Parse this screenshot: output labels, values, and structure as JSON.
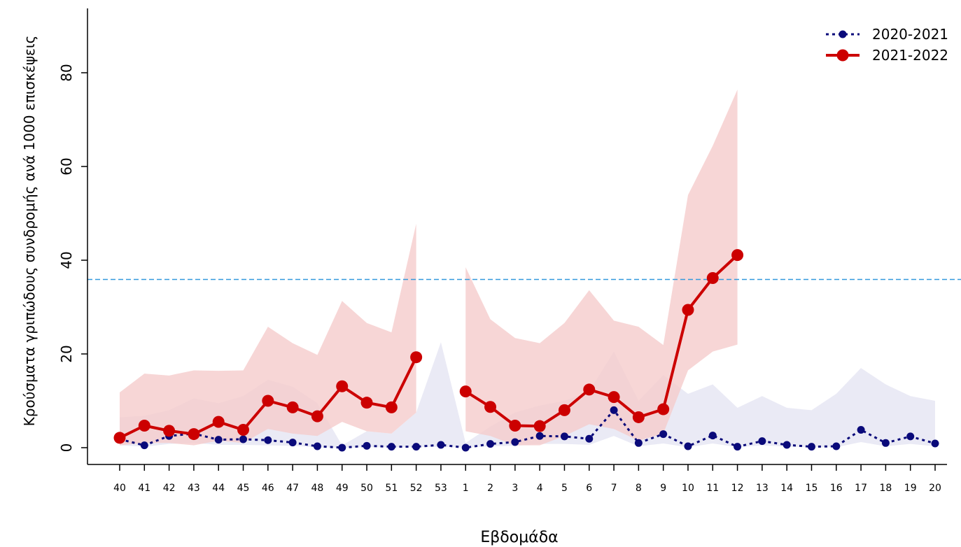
{
  "chart_data": {
    "type": "line",
    "title": "",
    "xlabel": "Εβδομάδα",
    "ylabel": "Κρούσματα γριπώδους συνδρομής ανά 1000 επισκέψεις",
    "categories": [
      "40",
      "41",
      "42",
      "43",
      "44",
      "45",
      "46",
      "47",
      "48",
      "49",
      "50",
      "51",
      "52",
      "53",
      "1",
      "2",
      "3",
      "4",
      "5",
      "6",
      "7",
      "8",
      "9",
      "10",
      "11",
      "12",
      "13",
      "14",
      "15",
      "16",
      "17",
      "18",
      "19",
      "20"
    ],
    "ylim": [
      0,
      93
    ],
    "yticks": [
      0,
      20,
      40,
      60,
      80
    ],
    "threshold": 35.9,
    "legend_position": "top-right",
    "series": [
      {
        "name": "2020-2021",
        "color": "#0a0a7a",
        "line_style": "dotted",
        "band_color": "#e6e6f3",
        "values": [
          1.8,
          0.5,
          2.5,
          3.0,
          1.7,
          1.8,
          1.6,
          1.1,
          0.3,
          0.0,
          0.4,
          0.2,
          0.2,
          0.6,
          0.0,
          0.8,
          1.2,
          2.5,
          2.4,
          1.9,
          8.0,
          1.0,
          2.9,
          0.3,
          2.6,
          0.2,
          1.4,
          0.6,
          0.2,
          0.3,
          3.8,
          1.0,
          2.4,
          0.9
        ],
        "band_low": [
          0.5,
          0.2,
          0.8,
          1.0,
          0.6,
          0.6,
          0.5,
          0.4,
          0.1,
          0.0,
          0.1,
          0.1,
          0.1,
          0.2,
          0.0,
          0.3,
          0.4,
          0.8,
          0.8,
          0.6,
          2.5,
          0.3,
          0.9,
          0.1,
          0.9,
          0.1,
          0.5,
          0.2,
          0.1,
          0.1,
          1.2,
          0.3,
          0.8,
          0.3
        ],
        "band_high": [
          6.5,
          6.8,
          8.0,
          10.5,
          9.5,
          11.0,
          14.5,
          13.0,
          9.5,
          0.5,
          3.5,
          3.0,
          7.5,
          22.5,
          1.0,
          4.5,
          7.5,
          9.0,
          10.0,
          12.0,
          20.5,
          10.0,
          15.5,
          11.5,
          13.5,
          8.5,
          11.0,
          8.5,
          8.0,
          11.5,
          17.0,
          13.5,
          11.0,
          10.0
        ]
      },
      {
        "name": "2021-2022",
        "color": "#cc0000",
        "line_style": "solid",
        "band_color": "#f5cccc",
        "values": [
          2.1,
          4.7,
          3.6,
          2.9,
          5.5,
          3.8,
          10.0,
          8.6,
          6.7,
          13.1,
          9.6,
          8.6,
          19.3,
          null,
          12.0,
          8.7,
          4.7,
          4.6,
          8.0,
          12.4,
          10.8,
          6.5,
          8.2,
          29.4,
          36.2,
          41.1,
          null,
          null,
          null,
          null,
          null,
          null,
          null,
          null
        ],
        "band_low": [
          0.5,
          1.0,
          1.0,
          0.5,
          1.5,
          1.0,
          4.0,
          3.0,
          2.5,
          5.5,
          3.5,
          3.0,
          7.5,
          null,
          3.5,
          2.5,
          0.5,
          0.5,
          2.5,
          5.0,
          4.0,
          1.5,
          3.0,
          16.5,
          20.5,
          22.0,
          null,
          null,
          null,
          null,
          null,
          null,
          null,
          null
        ],
        "band_high": [
          11.8,
          15.8,
          15.4,
          16.5,
          16.4,
          16.5,
          25.8,
          22.3,
          19.8,
          31.3,
          26.6,
          24.6,
          47.8,
          null,
          38.5,
          27.4,
          23.4,
          22.3,
          26.6,
          33.6,
          27.1,
          25.8,
          21.9,
          53.9,
          64.4,
          76.4,
          null,
          null,
          null,
          null,
          null,
          null,
          null,
          null
        ]
      }
    ]
  }
}
